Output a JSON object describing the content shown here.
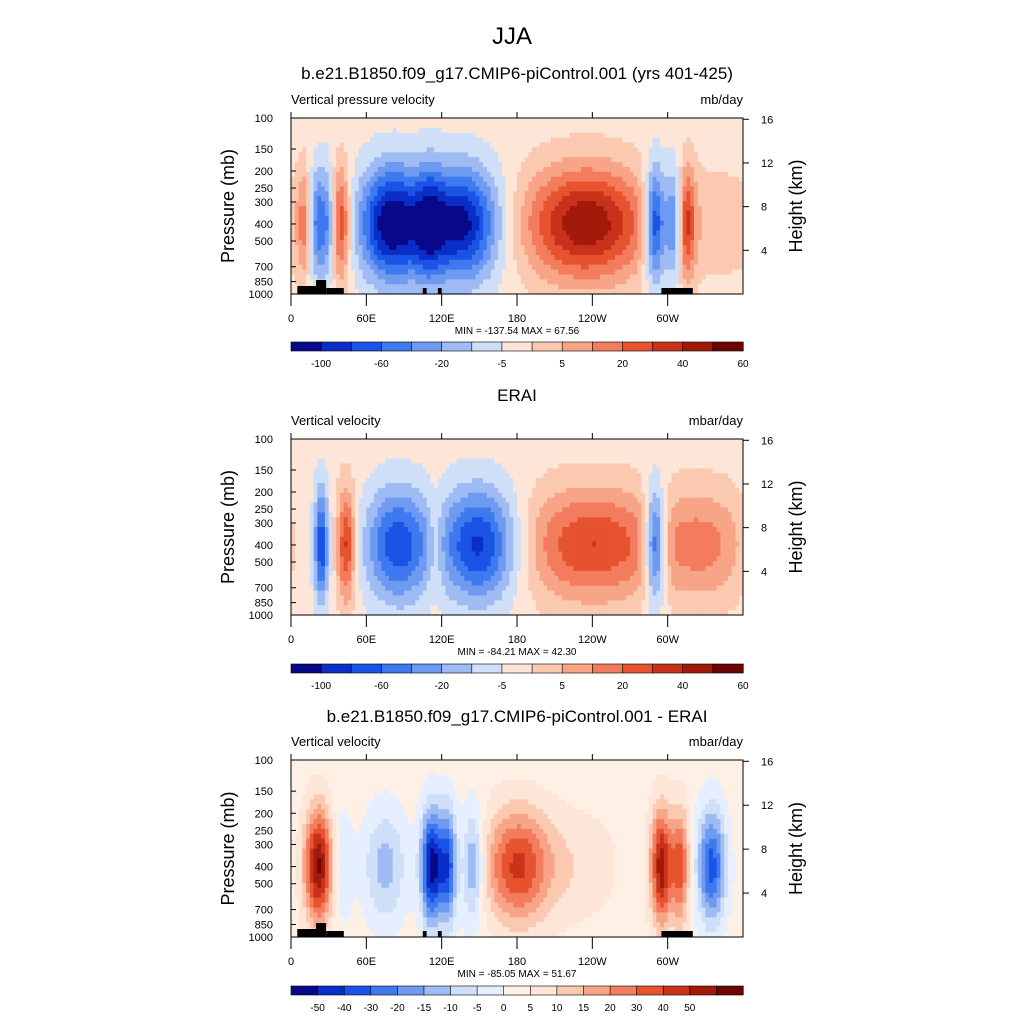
{
  "figure": {
    "title": "JJA"
  },
  "colors": {
    "bwr_11": [
      "#08088a",
      "#0a2fc7",
      "#1a53e5",
      "#3e79f0",
      "#6e9af2",
      "#9fbbf3",
      "#cfdff8",
      "#fde6d8",
      "#fbc8b0",
      "#f8a487",
      "#f27c5d",
      "#e6532f",
      "#c8321a",
      "#a11a0a",
      "#6e0303"
    ],
    "diff_15": [
      "#08088a",
      "#0a2fc7",
      "#1a53e5",
      "#3e79f0",
      "#6e9af2",
      "#9fbbf3",
      "#cfdff8",
      "#e6efff",
      "#fff0e6",
      "#fde6d8",
      "#fbc8b0",
      "#f8a487",
      "#f27c5d",
      "#e6532f",
      "#c8321a",
      "#a11a0a",
      "#6e0303"
    ]
  },
  "chart_data": [
    {
      "type": "heatmap",
      "title": "b.e21.B1850.f09_g17.CMIP6-piControl.001 (yrs 401-425)",
      "left_label": "Vertical pressure velocity",
      "right_label": "mb/day",
      "ylabel": "Pressure (mb)",
      "y2label": "Height (km)",
      "yticks": [
        "100",
        "150",
        "200",
        "250",
        "300",
        "400",
        "500",
        "700",
        "850",
        "1000"
      ],
      "ytick_values": [
        100,
        150,
        200,
        250,
        300,
        400,
        500,
        700,
        850,
        1000
      ],
      "y2ticks": [
        "4",
        "8",
        "12",
        "16"
      ],
      "y2tick_values": [
        4,
        8,
        12,
        16
      ],
      "xticks": [
        "0",
        "60E",
        "120E",
        "180",
        "120W",
        "60W"
      ],
      "xtick_values": [
        0,
        60,
        120,
        180,
        240,
        300
      ],
      "xlim": [
        0,
        360
      ],
      "ylim": [
        1000,
        100
      ],
      "stats": "MIN = -137.54  MAX =  67.56",
      "colorbar": {
        "labels": [
          "-100",
          "-60",
          "-20",
          "-5",
          "5",
          "20",
          "40",
          "60"
        ],
        "palette": "bwr_11"
      },
      "topo": true,
      "features": [
        {
          "lon": 10,
          "width": 4,
          "w": 0.35
        },
        {
          "lon": 22,
          "width": 5,
          "w": -0.6
        },
        {
          "lon": 30,
          "width": 3,
          "w": -0.3
        },
        {
          "lon": 40,
          "width": 5,
          "w": 0.6
        },
        {
          "lon": 80,
          "width": 18,
          "w": -1.0
        },
        {
          "lon": 135,
          "width": 22,
          "w": -0.95
        },
        {
          "lon": 110,
          "width": 8,
          "w": -0.4
        },
        {
          "lon": 235,
          "width": 35,
          "w": 0.85
        },
        {
          "lon": 290,
          "width": 6,
          "w": -0.9
        },
        {
          "lon": 305,
          "width": 5,
          "w": -0.6
        },
        {
          "lon": 315,
          "width": 5,
          "w": 0.55
        },
        {
          "lon": 340,
          "width": 25,
          "w": 0.15
        }
      ]
    },
    {
      "type": "heatmap",
      "title": "ERAI",
      "left_label": "Vertical velocity",
      "right_label": "mbar/day",
      "ylabel": "Pressure (mb)",
      "y2label": "Height (km)",
      "yticks": [
        "100",
        "150",
        "200",
        "250",
        "300",
        "400",
        "500",
        "700",
        "850",
        "1000"
      ],
      "ytick_values": [
        100,
        150,
        200,
        250,
        300,
        400,
        500,
        700,
        850,
        1000
      ],
      "y2ticks": [
        "4",
        "8",
        "12",
        "16"
      ],
      "y2tick_values": [
        4,
        8,
        12,
        16
      ],
      "xticks": [
        "0",
        "60E",
        "120E",
        "180",
        "120W",
        "60W"
      ],
      "xtick_values": [
        0,
        60,
        120,
        180,
        240,
        300
      ],
      "xlim": [
        0,
        360
      ],
      "ylim": [
        1000,
        100
      ],
      "stats": "MIN = -84.21  MAX =  42.30",
      "colorbar": {
        "labels": [
          "-100",
          "-60",
          "-20",
          "-5",
          "5",
          "20",
          "40",
          "60"
        ],
        "palette": "bwr_11"
      },
      "topo": false,
      "features": [
        {
          "lon": 8,
          "width": 6,
          "w": -0.15
        },
        {
          "lon": 24,
          "width": 4,
          "w": -0.75
        },
        {
          "lon": 44,
          "width": 5,
          "w": 0.65
        },
        {
          "lon": 85,
          "width": 18,
          "w": -0.7
        },
        {
          "lon": 150,
          "width": 22,
          "w": -0.8
        },
        {
          "lon": 115,
          "width": 5,
          "w": 0.2
        },
        {
          "lon": 240,
          "width": 40,
          "w": 0.6
        },
        {
          "lon": 290,
          "width": 6,
          "w": -0.85
        },
        {
          "lon": 330,
          "width": 25,
          "w": 0.35
        }
      ]
    },
    {
      "type": "heatmap",
      "title": "b.e21.B1850.f09_g17.CMIP6-piControl.001 - ERAI",
      "left_label": "Vertical velocity",
      "right_label": "mbar/day",
      "ylabel": "Pressure (mb)",
      "y2label": "Height (km)",
      "yticks": [
        "100",
        "150",
        "200",
        "250",
        "300",
        "400",
        "500",
        "700",
        "850",
        "1000"
      ],
      "ytick_values": [
        100,
        150,
        200,
        250,
        300,
        400,
        500,
        700,
        850,
        1000
      ],
      "y2ticks": [
        "4",
        "8",
        "12",
        "16"
      ],
      "y2tick_values": [
        4,
        8,
        12,
        16
      ],
      "xticks": [
        "0",
        "60E",
        "120E",
        "180",
        "120W",
        "60W"
      ],
      "xtick_values": [
        0,
        60,
        120,
        180,
        240,
        300
      ],
      "xlim": [
        0,
        360
      ],
      "ylim": [
        1000,
        100
      ],
      "stats": "MIN = -85.05  MAX =  51.67",
      "colorbar": {
        "labels": [
          "-50",
          "-40",
          "-30",
          "-20",
          "-15",
          "-10",
          "-5",
          "0",
          "5",
          "10",
          "15",
          "20",
          "30",
          "40",
          "50"
        ],
        "palette": "diff_15"
      },
      "topo": true,
      "features": [
        {
          "lon": 22,
          "width": 8,
          "w": 0.9
        },
        {
          "lon": 40,
          "width": 6,
          "w": -0.2
        },
        {
          "lon": 75,
          "width": 12,
          "w": -0.35
        },
        {
          "lon": 112,
          "width": 6,
          "w": -0.95
        },
        {
          "lon": 125,
          "width": 5,
          "w": -0.7
        },
        {
          "lon": 145,
          "width": 6,
          "w": -0.45
        },
        {
          "lon": 180,
          "width": 18,
          "w": 0.65
        },
        {
          "lon": 225,
          "width": 25,
          "w": 0.15
        },
        {
          "lon": 295,
          "width": 6,
          "w": 0.85
        },
        {
          "lon": 310,
          "width": 5,
          "w": 0.6
        },
        {
          "lon": 335,
          "width": 8,
          "w": -0.7
        }
      ]
    }
  ]
}
